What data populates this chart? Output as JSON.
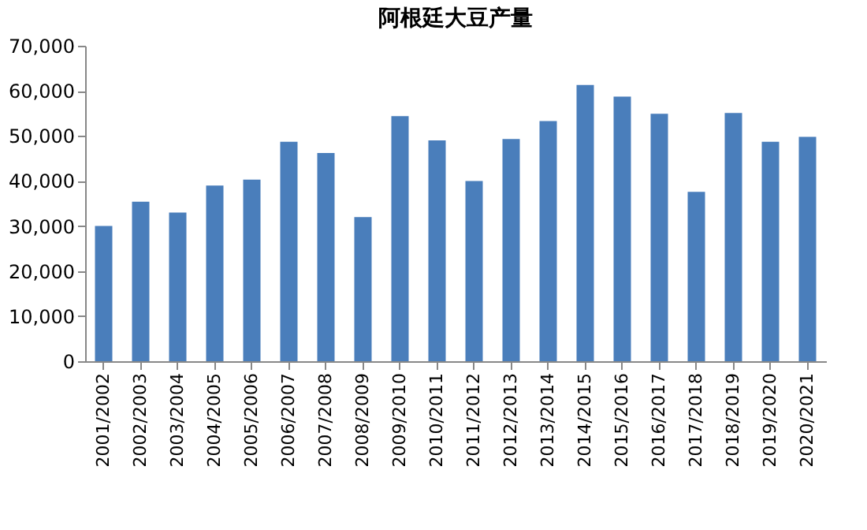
{
  "chart_data": {
    "type": "bar",
    "title": "阿根廷大豆产量",
    "categories": [
      "2001/2002",
      "2002/2003",
      "2003/2004",
      "2004/2005",
      "2005/2006",
      "2006/2007",
      "2007/2008",
      "2008/2009",
      "2009/2010",
      "2010/2011",
      "2011/2012",
      "2012/2013",
      "2013/2014",
      "2014/2015",
      "2015/2016",
      "2016/2017",
      "2017/2018",
      "2018/2019",
      "2019/2020",
      "2020/2021"
    ],
    "values": [
      30000,
      35400,
      33000,
      39000,
      40300,
      48700,
      46200,
      32000,
      54400,
      49000,
      40000,
      49300,
      53300,
      61300,
      58700,
      54900,
      37600,
      55100,
      48700,
      49800
    ],
    "color": "#4a7ebb",
    "ylim": [
      0,
      70000
    ],
    "yticks": [
      {
        "value": 0,
        "label": "0"
      },
      {
        "value": 10000,
        "label": "10,000"
      },
      {
        "value": 20000,
        "label": "20,000"
      },
      {
        "value": 30000,
        "label": "30,000"
      },
      {
        "value": 40000,
        "label": "40,000"
      },
      {
        "value": 50000,
        "label": "50,000"
      },
      {
        "value": 60000,
        "label": "60,000"
      },
      {
        "value": 70000,
        "label": "70,000"
      }
    ],
    "grid": false
  }
}
